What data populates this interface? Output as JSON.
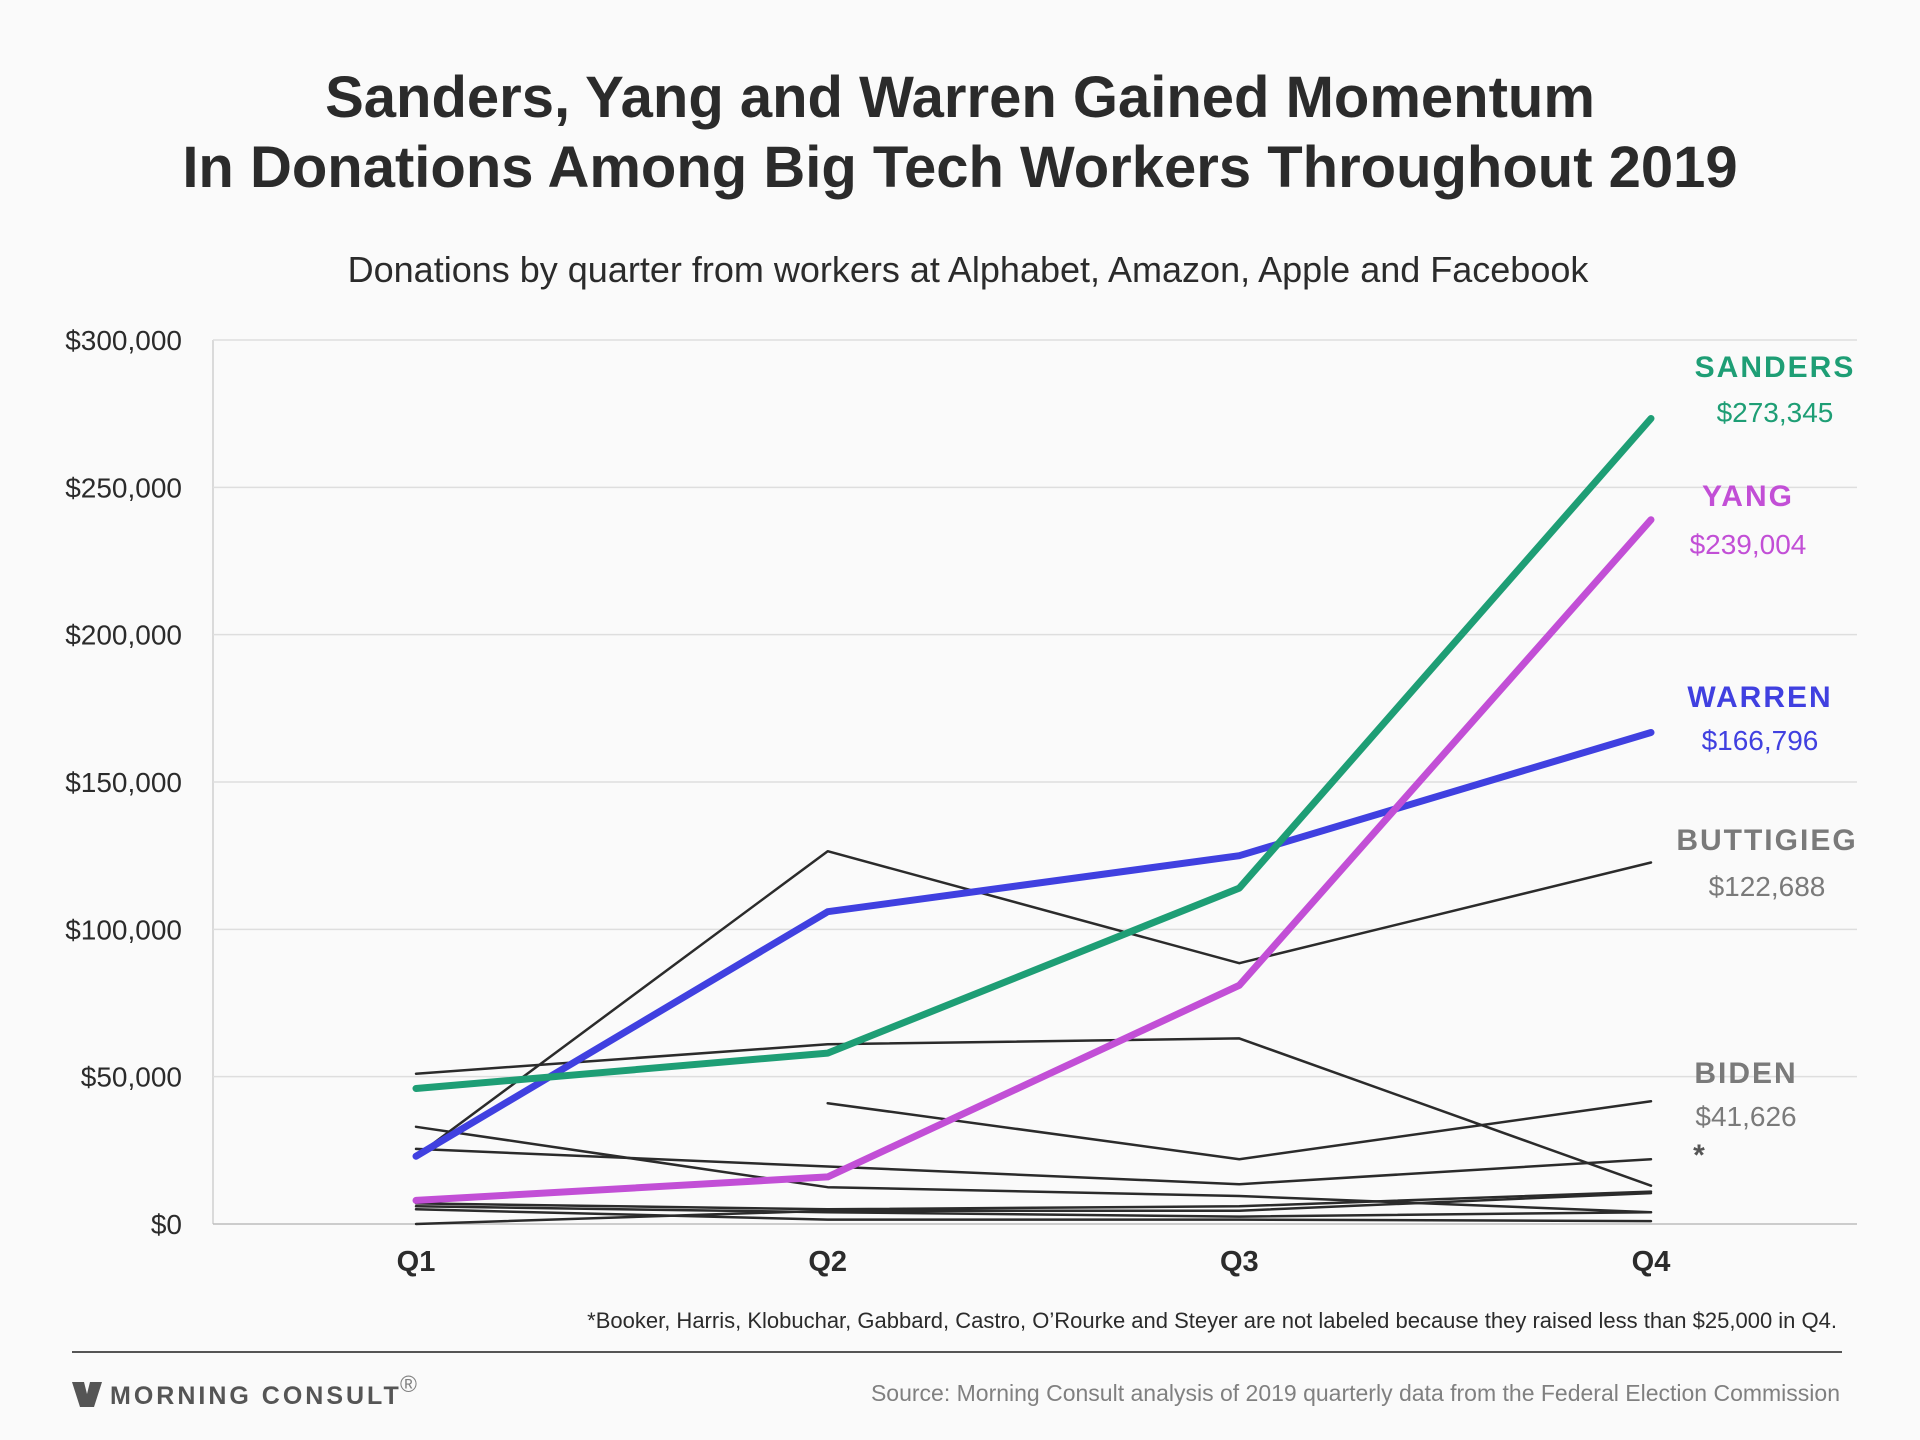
{
  "chart_data": {
    "type": "line",
    "title_line1": "Sanders, Yang and Warren Gained Momentum",
    "title_line2": "In Donations Among Big Tech Workers Throughout 2019",
    "subtitle": "Donations by quarter from workers at Alphabet, Amazon, Apple and Facebook",
    "categories": [
      "Q1",
      "Q2",
      "Q3",
      "Q4"
    ],
    "y_ticks": [
      0,
      50000,
      100000,
      150000,
      200000,
      250000,
      300000
    ],
    "y_tick_labels": [
      "$0",
      "$50,000",
      "$100,000",
      "$150,000",
      "$200,000",
      "$250,000",
      "$300,000"
    ],
    "ylim": [
      0,
      300000
    ],
    "grid": true,
    "series": [
      {
        "name": "SANDERS",
        "value_label": "$273,345",
        "color": "#1e9e75",
        "highlight": true,
        "values": [
          46000,
          58000,
          114000,
          273345
        ]
      },
      {
        "name": "YANG",
        "value_label": "$239,004",
        "color": "#c24fd6",
        "highlight": true,
        "values": [
          8000,
          16000,
          81000,
          239004
        ]
      },
      {
        "name": "WARREN",
        "value_label": "$166,796",
        "color": "#4040e0",
        "highlight": true,
        "values": [
          23000,
          106000,
          125000,
          166796
        ]
      },
      {
        "name": "BUTTIGIEG",
        "value_label": "$122,688",
        "color": "#7a7a7a",
        "highlight": false,
        "values": [
          23000,
          126500,
          88500,
          122688
        ]
      },
      {
        "name": "BIDEN",
        "value_label": "$41,626",
        "color": "#7a7a7a",
        "highlight": false,
        "values": [
          null,
          41000,
          22000,
          41626
        ]
      },
      {
        "color": "#2b2b2b",
        "highlight": false,
        "values": [
          51000,
          61000,
          63000,
          13000
        ]
      },
      {
        "color": "#2b2b2b",
        "highlight": false,
        "values": [
          33000,
          12500,
          9500,
          4000
        ]
      },
      {
        "color": "#2b2b2b",
        "highlight": false,
        "values": [
          25500,
          19500,
          13500,
          22000
        ]
      },
      {
        "color": "#2b2b2b",
        "highlight": false,
        "values": [
          7000,
          5000,
          6000,
          11000
        ]
      },
      {
        "color": "#2b2b2b",
        "highlight": false,
        "values": [
          6000,
          4000,
          2500,
          4000
        ]
      },
      {
        "color": "#2b2b2b",
        "highlight": false,
        "values": [
          0,
          4500,
          4500,
          10500
        ]
      },
      {
        "color": "#2b2b2b",
        "highlight": false,
        "values": [
          5000,
          1500,
          1500,
          1000
        ]
      }
    ],
    "asterisk_marker": "*",
    "footnote": "*Booker, Harris, Klobuchar, Gabbard, Castro, O’Rourke and Steyer are not labeled because they raised less than $25,000 in Q4.",
    "source": "Source: Morning Consult analysis of 2019 quarterly data from the Federal Election Commission",
    "brand": "MORNING CONSULT",
    "brand_mark": "®"
  }
}
